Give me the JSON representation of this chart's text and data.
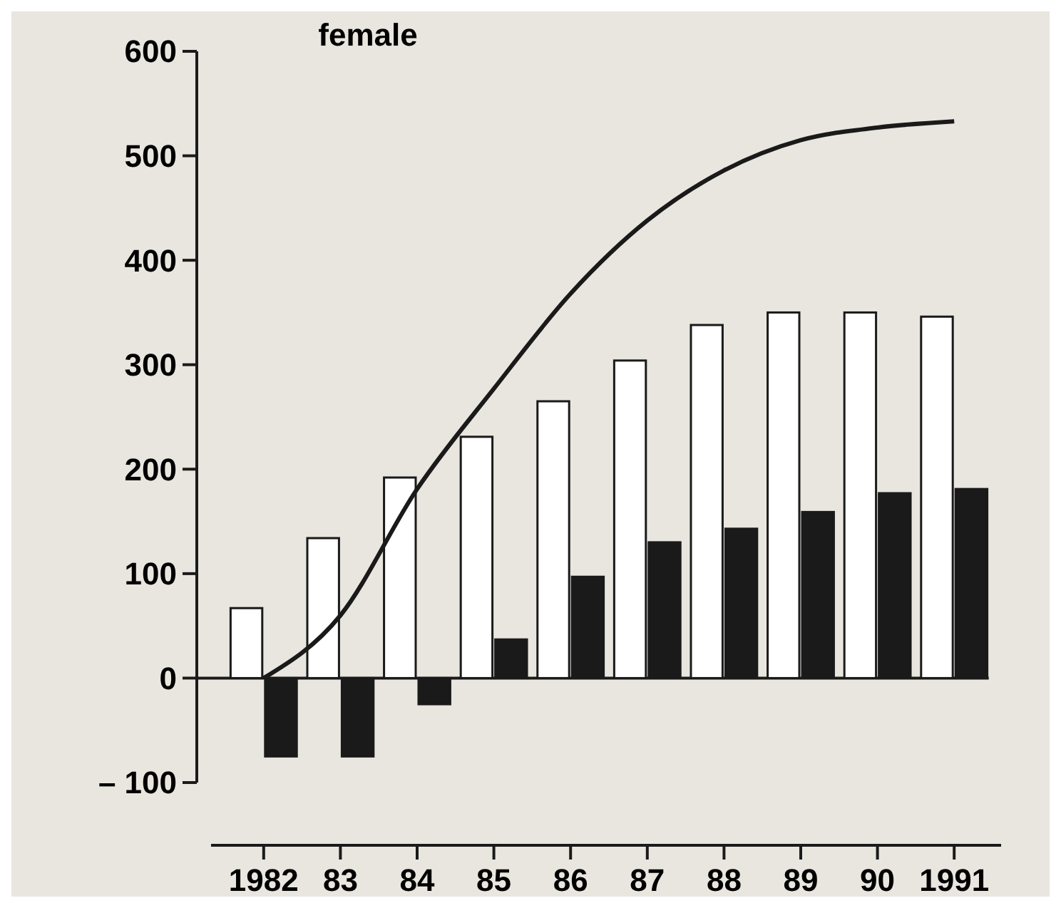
{
  "chart_data": {
    "type": "bar",
    "title": "female",
    "categories": [
      "1982",
      "83",
      "84",
      "85",
      "86",
      "87",
      "88",
      "89",
      "90",
      "1991"
    ],
    "series": [
      {
        "color": "#ffffff",
        "values": [
          67,
          134,
          192,
          231,
          265,
          304,
          338,
          350,
          350,
          346
        ]
      },
      {
        "color": "#1a1a1a",
        "values": [
          -75,
          -75,
          -25,
          37,
          97,
          130,
          143,
          159,
          177,
          181
        ]
      },
      {
        "type": "line",
        "color": "#1a1a1a",
        "values": [
          0,
          60,
          181,
          277,
          368,
          438,
          486,
          515,
          527,
          533
        ]
      }
    ],
    "ylim": [
      -100,
      600
    ],
    "yticks": [
      {
        "value": -100,
        "label": "– 100"
      },
      0,
      100,
      200,
      300,
      400,
      500,
      600
    ],
    "ref_lines": [
      {
        "axis": "y",
        "value": 0
      }
    ],
    "marker": "none",
    "line_style": "solid"
  }
}
